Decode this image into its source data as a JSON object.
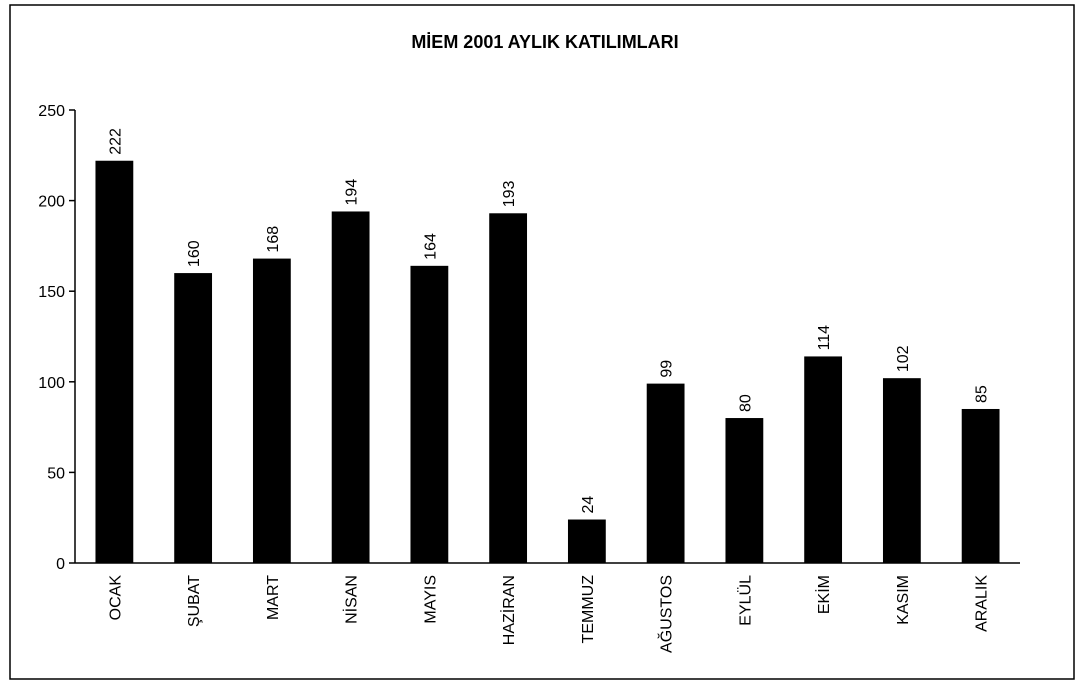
{
  "chart_data": {
    "type": "bar",
    "title": "MİEM 2001 AYLIK KATILIMLARI",
    "categories": [
      "OCAK",
      "ŞUBAT",
      "MART",
      "NİSAN",
      "MAYIS",
      "HAZİRAN",
      "TEMMUZ",
      "AĞUSTOS",
      "EYLÜL",
      "EKİM",
      "KASIM",
      "ARALIK"
    ],
    "values": [
      222,
      160,
      168,
      194,
      164,
      193,
      24,
      99,
      80,
      114,
      102,
      85
    ],
    "color": "#000000",
    "ylim": [
      0,
      250
    ],
    "yticks": [
      0,
      50,
      100,
      150,
      200,
      250
    ],
    "grid": false
  }
}
